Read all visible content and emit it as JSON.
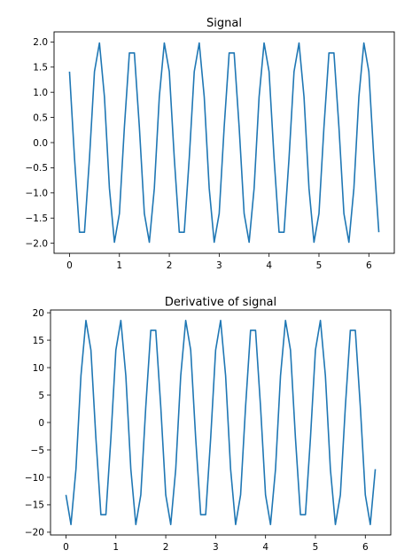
{
  "chart_data": [
    {
      "type": "line",
      "title": "Signal",
      "xlim": [
        -0.31,
        6.51
      ],
      "ylim": [
        -2.2,
        2.2
      ],
      "xticks": [
        0,
        1,
        2,
        3,
        4,
        5,
        6
      ],
      "xtick_labels": [
        "0",
        "1",
        "2",
        "3",
        "4",
        "5",
        "6"
      ],
      "yticks": [
        2.0,
        1.5,
        1.0,
        0.5,
        0.0,
        -0.5,
        -1.0,
        -1.5,
        -2.0
      ],
      "ytick_labels": [
        "2.0",
        "1.5",
        "1.0",
        "0.5",
        "0.0",
        "−0.5",
        "−1.0",
        "−1.5",
        "−2.0"
      ],
      "grid": false,
      "series": [
        {
          "color": "#1f77b4",
          "x": [
            0,
            0.1,
            0.2,
            0.3,
            0.4,
            0.5,
            0.6,
            0.7,
            0.8,
            0.9,
            1.0,
            1.1,
            1.2,
            1.3,
            1.4,
            1.5,
            1.6,
            1.7,
            1.8,
            1.9,
            2.0,
            2.1,
            2.2,
            2.3,
            2.4,
            2.5,
            2.6,
            2.7,
            2.8,
            2.9,
            3.0,
            3.1,
            3.2,
            3.3,
            3.4,
            3.5,
            3.6,
            3.7,
            3.8,
            3.9,
            4.0,
            4.1,
            4.2,
            4.3,
            4.4,
            4.5,
            4.6,
            4.7,
            4.8,
            4.9,
            5.0,
            5.1,
            5.2,
            5.3,
            5.4,
            5.5,
            5.6,
            5.7,
            5.8,
            5.9,
            6.0,
            6.1,
            6.2
          ],
          "y": [
            1.41,
            -0.31,
            -1.78,
            -1.78,
            -0.31,
            1.41,
            1.98,
            0.91,
            -0.91,
            -1.98,
            -1.41,
            0.31,
            1.78,
            1.78,
            0.31,
            -1.41,
            -1.98,
            -0.91,
            0.91,
            1.98,
            1.41,
            -0.31,
            -1.78,
            -1.78,
            -0.31,
            1.41,
            1.98,
            0.91,
            -0.91,
            -1.98,
            -1.41,
            0.31,
            1.78,
            1.78,
            0.31,
            -1.41,
            -1.98,
            -0.91,
            0.91,
            1.98,
            1.41,
            -0.31,
            -1.78,
            -1.78,
            -0.31,
            1.41,
            1.98,
            0.91,
            -0.91,
            -1.98,
            -1.41,
            0.31,
            1.78,
            1.78,
            0.31,
            -1.41,
            -1.98,
            -0.91,
            0.91,
            1.98,
            1.41,
            -0.31,
            -1.78
          ]
        }
      ]
    },
    {
      "type": "line",
      "title": "Derivative of signal",
      "xlim": [
        -0.31,
        6.51
      ],
      "ylim": [
        -20.5,
        20.5
      ],
      "xticks": [
        0,
        1,
        2,
        3,
        4,
        5,
        6
      ],
      "xtick_labels": [
        "0",
        "1",
        "2",
        "3",
        "4",
        "5",
        "6"
      ],
      "yticks": [
        20,
        15,
        10,
        5,
        0,
        -5,
        -10,
        -15,
        -20
      ],
      "ytick_labels": [
        "20",
        "15",
        "10",
        "5",
        "0",
        "−5",
        "−10",
        "−15",
        "−20"
      ],
      "grid": false,
      "series": [
        {
          "color": "#1f77b4",
          "x": [
            0,
            0.1,
            0.2,
            0.3,
            0.4,
            0.5,
            0.6,
            0.7,
            0.8,
            0.9,
            1.0,
            1.1,
            1.2,
            1.3,
            1.4,
            1.5,
            1.6,
            1.7,
            1.8,
            1.9,
            2.0,
            2.1,
            2.2,
            2.3,
            2.4,
            2.5,
            2.6,
            2.7,
            2.8,
            2.9,
            3.0,
            3.1,
            3.2,
            3.3,
            3.4,
            3.5,
            3.6,
            3.7,
            3.8,
            3.9,
            4.0,
            4.1,
            4.2,
            4.3,
            4.4,
            4.5,
            4.6,
            4.7,
            4.8,
            4.9,
            5.0,
            5.1,
            5.2,
            5.3,
            5.4,
            5.5,
            5.6,
            5.7,
            5.8,
            5.9,
            6.0,
            6.1,
            6.2
          ],
          "y": [
            -13.2,
            -18.6,
            -8.5,
            8.5,
            18.6,
            13.2,
            -2.9,
            -16.8,
            -16.8,
            -2.9,
            13.2,
            18.6,
            8.5,
            -8.5,
            -18.6,
            -13.2,
            2.9,
            16.8,
            16.8,
            2.9,
            -13.2,
            -18.6,
            -8.5,
            8.5,
            18.6,
            13.2,
            -2.9,
            -16.8,
            -16.8,
            -2.9,
            13.2,
            18.6,
            8.5,
            -8.5,
            -18.6,
            -13.2,
            2.9,
            16.8,
            16.8,
            2.9,
            -13.2,
            -18.6,
            -8.5,
            8.5,
            18.6,
            13.2,
            -2.9,
            -16.8,
            -16.8,
            -2.9,
            13.2,
            18.6,
            8.5,
            -8.5,
            -18.6,
            -13.2,
            2.9,
            16.8,
            16.8,
            2.9,
            -13.2,
            -18.6,
            -8.5
          ]
        }
      ]
    }
  ]
}
